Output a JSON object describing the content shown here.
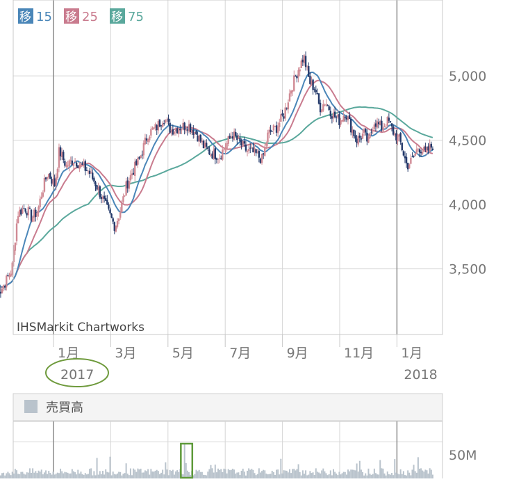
{
  "chart_data": {
    "type": "candlestick",
    "watermark": "IHSMarkit Chartworks",
    "legend": [
      {
        "badge": "移",
        "label": "15",
        "color": "#4a86b8"
      },
      {
        "badge": "移",
        "label": "25",
        "color": "#c97b8e"
      },
      {
        "badge": "移",
        "label": "75",
        "color": "#5aa89c"
      }
    ],
    "colors": {
      "up": "#d08a94",
      "down": "#243a6b",
      "ma15": "#4a86b8",
      "ma25": "#c97b8e",
      "ma75": "#5aa89c",
      "volume": "#b9c3cc"
    },
    "price_axis": {
      "ticks": [
        "5,000",
        "4,500",
        "4,000",
        "3,500"
      ],
      "values": [
        5000,
        4500,
        4000,
        3500
      ],
      "min": 2990,
      "max": 5590
    },
    "x_ticks": [
      {
        "label": "1月",
        "year": "2017",
        "month_index": 2
      },
      {
        "label": "3月",
        "year": "",
        "month_index": 4
      },
      {
        "label": "5月",
        "year": "",
        "month_index": 6
      },
      {
        "label": "7月",
        "year": "",
        "month_index": 8
      },
      {
        "label": "9月",
        "year": "",
        "month_index": 10
      },
      {
        "label": "11月",
        "year": "",
        "month_index": 12
      },
      {
        "label": "1月",
        "year": "2018",
        "month_index": 14
      }
    ],
    "price_path": [
      {
        "m": 0.0,
        "p": 3420
      },
      {
        "m": 0.15,
        "p": 3330
      },
      {
        "m": 0.35,
        "p": 3410
      },
      {
        "m": 0.55,
        "p": 3500
      },
      {
        "m": 0.75,
        "p": 3930
      },
      {
        "m": 1.0,
        "p": 3980
      },
      {
        "m": 1.25,
        "p": 3900
      },
      {
        "m": 1.45,
        "p": 3950
      },
      {
        "m": 1.6,
        "p": 4100
      },
      {
        "m": 1.8,
        "p": 4250
      },
      {
        "m": 2.05,
        "p": 4150
      },
      {
        "m": 2.2,
        "p": 4420
      },
      {
        "m": 2.45,
        "p": 4300
      },
      {
        "m": 2.7,
        "p": 4350
      },
      {
        "m": 3.0,
        "p": 4300
      },
      {
        "m": 3.25,
        "p": 4250
      },
      {
        "m": 3.5,
        "p": 4150
      },
      {
        "m": 3.8,
        "p": 4000
      },
      {
        "m": 4.0,
        "p": 3900
      },
      {
        "m": 4.15,
        "p": 3830
      },
      {
        "m": 4.35,
        "p": 3960
      },
      {
        "m": 4.55,
        "p": 4150
      },
      {
        "m": 4.75,
        "p": 4250
      },
      {
        "m": 5.0,
        "p": 4350
      },
      {
        "m": 5.3,
        "p": 4550
      },
      {
        "m": 5.6,
        "p": 4600
      },
      {
        "m": 5.85,
        "p": 4680
      },
      {
        "m": 6.1,
        "p": 4580
      },
      {
        "m": 6.4,
        "p": 4600
      },
      {
        "m": 6.7,
        "p": 4620
      },
      {
        "m": 7.0,
        "p": 4550
      },
      {
        "m": 7.25,
        "p": 4450
      },
      {
        "m": 7.5,
        "p": 4400
      },
      {
        "m": 7.8,
        "p": 4380
      },
      {
        "m": 8.0,
        "p": 4450
      },
      {
        "m": 8.25,
        "p": 4550
      },
      {
        "m": 8.5,
        "p": 4480
      },
      {
        "m": 8.75,
        "p": 4420
      },
      {
        "m": 9.0,
        "p": 4400
      },
      {
        "m": 9.3,
        "p": 4350
      },
      {
        "m": 9.5,
        "p": 4550
      },
      {
        "m": 9.8,
        "p": 4600
      },
      {
        "m": 10.05,
        "p": 4700
      },
      {
        "m": 10.3,
        "p": 4900
      },
      {
        "m": 10.55,
        "p": 5050
      },
      {
        "m": 10.75,
        "p": 5150
      },
      {
        "m": 10.95,
        "p": 4950
      },
      {
        "m": 11.15,
        "p": 4900
      },
      {
        "m": 11.3,
        "p": 4750
      },
      {
        "m": 11.5,
        "p": 4800
      },
      {
        "m": 11.75,
        "p": 4700
      },
      {
        "m": 12.0,
        "p": 4650
      },
      {
        "m": 12.2,
        "p": 4720
      },
      {
        "m": 12.4,
        "p": 4600
      },
      {
        "m": 12.6,
        "p": 4500
      },
      {
        "m": 12.85,
        "p": 4550
      },
      {
        "m": 13.0,
        "p": 4480
      },
      {
        "m": 13.2,
        "p": 4650
      },
      {
        "m": 13.45,
        "p": 4600
      },
      {
        "m": 13.7,
        "p": 4650
      },
      {
        "m": 13.9,
        "p": 4550
      },
      {
        "m": 14.1,
        "p": 4500
      },
      {
        "m": 14.35,
        "p": 4300
      },
      {
        "m": 14.55,
        "p": 4350
      },
      {
        "m": 14.75,
        "p": 4450
      },
      {
        "m": 15.0,
        "p": 4400
      },
      {
        "m": 15.25,
        "p": 4460
      }
    ],
    "volume_panel": {
      "legend_label": "売買高",
      "tick_label": "50M",
      "tick_value": 50,
      "max": 78,
      "spike_month": 6.6,
      "spike_value": 48,
      "spike_box": [
        6.45,
        6.85
      ],
      "highlight_color": "#5e9a3a"
    },
    "annotations": {
      "circled_label": "2017",
      "circle_color": "#6e9a3c"
    }
  }
}
